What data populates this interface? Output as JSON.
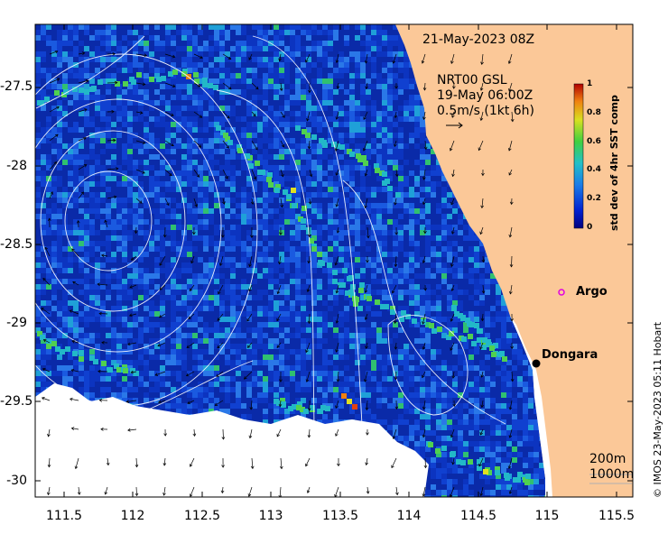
{
  "map": {
    "date_label": "21-May-2023 08Z",
    "current_title": "NRT00 GSL",
    "current_date": "19-May 06:00Z",
    "current_scale": "0.5m/s (1kt 6h)",
    "depth_200": "200m",
    "depth_1000": "1000m",
    "credit": "© IMOS 23-May-2023 05:11 Hobart",
    "places": [
      {
        "name": "Argo",
        "marker_color": "#e000e0"
      },
      {
        "name": "Dongara",
        "marker_color": "#000000"
      }
    ],
    "colorbar": {
      "label": "std dev of 4hr SST comp",
      "ticks": [
        "0",
        "0.2",
        "0.4",
        "0.6",
        "0.8",
        "1"
      ]
    },
    "x_ticks": [
      "111.5",
      "112",
      "112.5",
      "113",
      "113.5",
      "114",
      "114.5",
      "115",
      "115.5"
    ],
    "y_ticks": [
      "-27.5",
      "-28",
      "-28.5",
      "-29",
      "-29.5",
      "-30"
    ],
    "colors": {
      "land": "#fbc898",
      "ocean_low": "#0a28a8",
      "ocean_mid": "#2a6ee8",
      "front": "#1fb0c8",
      "high": "#e0e020"
    }
  }
}
